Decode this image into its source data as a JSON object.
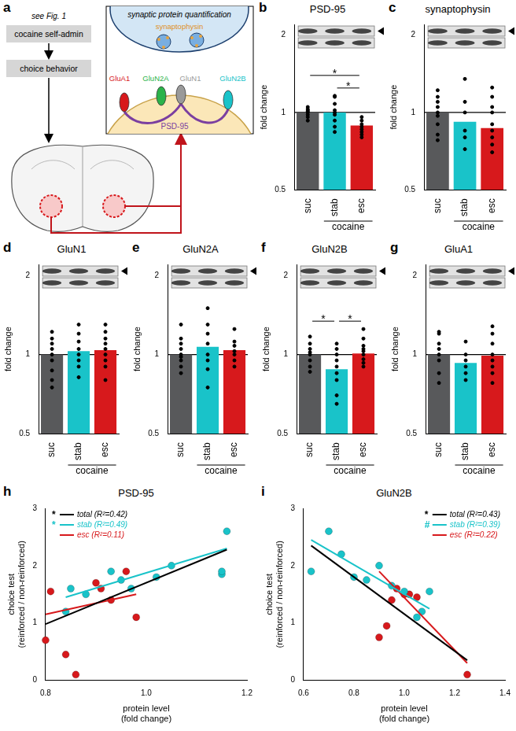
{
  "diagram": {
    "panel": "a",
    "note": "see Fig. 1",
    "steps": [
      "cocaine self-admin",
      "choice behavior"
    ],
    "inset_title": "synaptic protein quantification",
    "presynaptic": "synaptophysin",
    "scaffold": "PSD-95",
    "receptors": [
      {
        "label": "GluA1",
        "color": "#d7191c"
      },
      {
        "label": "GluN2A",
        "color": "#2bb34a"
      },
      {
        "label": "GluN1",
        "color": "#9a9a9a"
      },
      {
        "label": "GluN2B",
        "color": "#19c3c9"
      }
    ]
  },
  "chart_data": [
    {
      "type": "bar",
      "panel": "b",
      "title": "PSD-95",
      "categories": [
        "suc",
        "stab",
        "esc"
      ],
      "values": [
        1.0,
        1.0,
        0.89
      ],
      "points": [
        [
          0.93,
          0.96,
          0.98,
          1.0,
          1.01,
          1.02,
          1.03,
          1.05
        ],
        [
          0.84,
          0.88,
          0.93,
          0.98,
          1.0,
          1.02,
          1.08,
          1.15,
          1.16
        ],
        [
          0.8,
          0.82,
          0.84,
          0.86,
          0.88,
          0.9,
          0.93,
          0.96
        ]
      ],
      "colors": [
        "#58595b",
        "#19c3c9",
        "#d7191c"
      ],
      "ylabel": "fold change",
      "log": "y",
      "ylim": [
        0.5,
        2.2
      ],
      "yticks": [
        0.5,
        1,
        2
      ],
      "grid": false,
      "baseline": 1,
      "significance": [
        {
          "from": "stab",
          "to": "esc",
          "label": "*"
        },
        {
          "from": "suc",
          "to": "esc",
          "label": "*"
        }
      ],
      "group_label": {
        "text": "cocaine",
        "categories": [
          "stab",
          "esc"
        ]
      }
    },
    {
      "type": "bar",
      "panel": "c",
      "title": "synaptophysin",
      "categories": [
        "suc",
        "stab",
        "esc"
      ],
      "values": [
        1.0,
        0.92,
        0.87
      ],
      "points": [
        [
          0.78,
          0.82,
          0.9,
          0.97,
          1.0,
          1.05,
          1.1,
          1.15,
          1.22
        ],
        [
          0.72,
          0.8,
          0.85,
          1.0,
          1.1,
          1.35
        ],
        [
          0.7,
          0.75,
          0.8,
          0.85,
          0.9,
          1.0,
          1.05,
          1.15,
          1.25
        ]
      ],
      "colors": [
        "#58595b",
        "#19c3c9",
        "#d7191c"
      ],
      "ylabel": "fold change",
      "log": "y",
      "ylim": [
        0.5,
        2.2
      ],
      "yticks": [
        0.5,
        1,
        2
      ],
      "grid": false,
      "baseline": 1,
      "significance": [],
      "group_label": {
        "text": "cocaine",
        "categories": [
          "stab",
          "esc"
        ]
      }
    },
    {
      "type": "bar",
      "panel": "d",
      "title": "GluN1",
      "categories": [
        "suc",
        "stab",
        "esc"
      ],
      "values": [
        1.0,
        1.03,
        1.04
      ],
      "points": [
        [
          0.75,
          0.8,
          0.87,
          0.95,
          1.0,
          1.05,
          1.1,
          1.15,
          1.22
        ],
        [
          0.82,
          0.9,
          0.95,
          1.0,
          1.05,
          1.12,
          1.2,
          1.3
        ],
        [
          0.8,
          0.9,
          0.95,
          1.0,
          1.05,
          1.1,
          1.15,
          1.22,
          1.3
        ]
      ],
      "colors": [
        "#58595b",
        "#19c3c9",
        "#d7191c"
      ],
      "ylabel": "fold change",
      "log": "y",
      "ylim": [
        0.5,
        2.2
      ],
      "yticks": [
        0.5,
        1,
        2
      ],
      "grid": false,
      "baseline": 1,
      "significance": [],
      "group_label": {
        "text": "cocaine",
        "categories": [
          "stab",
          "esc"
        ]
      }
    },
    {
      "type": "bar",
      "panel": "e",
      "title": "GluN2A",
      "categories": [
        "suc",
        "stab",
        "esc"
      ],
      "values": [
        1.0,
        1.07,
        1.04
      ],
      "points": [
        [
          0.85,
          0.9,
          0.95,
          0.98,
          1.0,
          1.05,
          1.1,
          1.15,
          1.3
        ],
        [
          0.75,
          0.88,
          0.95,
          1.0,
          1.1,
          1.2,
          1.3,
          1.5
        ],
        [
          0.9,
          0.95,
          1.0,
          1.03,
          1.08,
          1.12,
          1.25
        ]
      ],
      "colors": [
        "#58595b",
        "#19c3c9",
        "#d7191c"
      ],
      "ylabel": "fold change",
      "log": "y",
      "ylim": [
        0.5,
        2.2
      ],
      "yticks": [
        0.5,
        1,
        2
      ],
      "grid": false,
      "baseline": 1,
      "significance": [],
      "group_label": {
        "text": "cocaine",
        "categories": [
          "stab",
          "esc"
        ]
      }
    },
    {
      "type": "bar",
      "panel": "f",
      "title": "GluN2B",
      "categories": [
        "suc",
        "stab",
        "esc"
      ],
      "values": [
        1.0,
        0.88,
        1.01
      ],
      "points": [
        [
          0.86,
          0.9,
          0.95,
          1.0,
          1.02,
          1.05,
          1.1,
          1.17
        ],
        [
          0.65,
          0.7,
          0.8,
          0.85,
          0.9,
          0.95,
          1.0,
          1.05,
          1.1
        ],
        [
          0.9,
          0.93,
          0.96,
          1.0,
          1.03,
          1.05,
          1.08,
          1.15,
          1.25
        ]
      ],
      "colors": [
        "#58595b",
        "#19c3c9",
        "#d7191c"
      ],
      "ylabel": "fold change",
      "log": "y",
      "ylim": [
        0.5,
        2.2
      ],
      "yticks": [
        0.5,
        1,
        2
      ],
      "grid": false,
      "baseline": 1,
      "significance": [
        {
          "from": "suc",
          "to": "stab",
          "label": "*"
        },
        {
          "from": "stab",
          "to": "esc",
          "label": "*"
        }
      ],
      "group_label": {
        "text": "cocaine",
        "categories": [
          "stab",
          "esc"
        ]
      }
    },
    {
      "type": "bar",
      "panel": "g",
      "title": "GluA1",
      "categories": [
        "suc",
        "stab",
        "esc"
      ],
      "values": [
        1.0,
        0.93,
        0.99
      ],
      "points": [
        [
          0.78,
          0.85,
          0.95,
          1.0,
          1.05,
          1.1,
          1.2,
          1.22
        ],
        [
          0.8,
          0.85,
          0.9,
          0.95,
          1.0,
          1.12
        ],
        [
          0.78,
          0.85,
          0.9,
          0.95,
          1.0,
          1.1,
          1.2,
          1.28
        ]
      ],
      "colors": [
        "#58595b",
        "#19c3c9",
        "#d7191c"
      ],
      "ylabel": "fold change",
      "log": "y",
      "ylim": [
        0.5,
        2.2
      ],
      "yticks": [
        0.5,
        1,
        2
      ],
      "grid": false,
      "baseline": 1,
      "significance": [],
      "group_label": {
        "text": "cocaine",
        "categories": [
          "stab",
          "esc"
        ]
      }
    },
    {
      "type": "scatter",
      "panel": "h",
      "title": "PSD-95",
      "xlabel": [
        "protein level",
        "(fold change)"
      ],
      "ylabel": [
        "choice test",
        "(reinforced / non-reinforced)"
      ],
      "xlim": [
        0.8,
        1.2
      ],
      "xticks": [
        0.8,
        {
          "value": 1,
          "label": "1.0"
        },
        1.2
      ],
      "ylim": [
        0,
        3
      ],
      "yticks": [
        0,
        1,
        2,
        3
      ],
      "grid": false,
      "legend": "upper left",
      "series": [
        {
          "name": "total",
          "color": "#000000",
          "r2_label": "(R²=0.42)",
          "significance": "*",
          "fit_x": [
            0.8,
            1.16
          ],
          "fit_values": [
            0.98,
            2.28
          ]
        },
        {
          "name": "stab",
          "color": "#19c3c9",
          "r2_label": "(R²=0.49)",
          "significance": "*",
          "fit_x": [
            0.84,
            1.16
          ],
          "fit_values": [
            1.45,
            2.3
          ],
          "x": [
            0.84,
            0.85,
            0.88,
            0.93,
            0.95,
            0.97,
            1.02,
            1.05,
            1.15,
            1.15,
            1.16
          ],
          "values": [
            1.2,
            1.6,
            1.5,
            1.9,
            1.75,
            1.6,
            1.8,
            2.0,
            1.85,
            1.9,
            2.6
          ]
        },
        {
          "name": "esc",
          "color": "#d7191c",
          "r2_label": "(R²=0.11)",
          "fit_x": [
            0.8,
            0.98
          ],
          "fit_values": [
            1.15,
            1.5
          ],
          "x": [
            0.8,
            0.81,
            0.84,
            0.86,
            0.9,
            0.91,
            0.93,
            0.96,
            0.98
          ],
          "values": [
            0.7,
            1.55,
            0.45,
            0.1,
            1.7,
            1.6,
            1.4,
            1.9,
            1.1
          ]
        }
      ]
    },
    {
      "type": "scatter",
      "panel": "i",
      "title": "GluN2B",
      "xlabel": [
        "protein level",
        "(fold change)"
      ],
      "ylabel": [
        "choice test",
        "(reinforced / non-reinforced)"
      ],
      "xlim": [
        0.6,
        1.4
      ],
      "xticks": [
        0.6,
        0.8,
        {
          "value": 1,
          "label": "1.0"
        },
        1.2,
        1.4
      ],
      "ylim": [
        0,
        3
      ],
      "yticks": [
        0,
        1,
        2,
        3
      ],
      "grid": false,
      "legend": "upper right",
      "series": [
        {
          "name": "total",
          "color": "#000000",
          "r2_label": "(R²=0.43)",
          "significance": "*",
          "fit_x": [
            0.63,
            1.25
          ],
          "fit_values": [
            2.35,
            0.35
          ]
        },
        {
          "name": "stab",
          "color": "#19c3c9",
          "r2_label": "(R²=0.39)",
          "significance": "#",
          "fit_x": [
            0.63,
            1.1
          ],
          "fit_values": [
            2.45,
            1.25
          ],
          "x": [
            0.63,
            0.7,
            0.75,
            0.8,
            0.85,
            0.9,
            0.95,
            1.0,
            1.05,
            1.07,
            1.1
          ],
          "values": [
            1.9,
            2.6,
            2.2,
            1.8,
            1.75,
            2.0,
            1.65,
            1.55,
            1.1,
            1.2,
            1.55
          ]
        },
        {
          "name": "esc",
          "color": "#d7191c",
          "r2_label": "(R²=0.22)",
          "fit_x": [
            0.9,
            1.25
          ],
          "fit_values": [
            1.9,
            0.3
          ],
          "x": [
            0.9,
            0.93,
            0.95,
            0.97,
            1.0,
            1.02,
            1.05,
            1.25
          ],
          "values": [
            0.75,
            0.95,
            1.4,
            1.6,
            1.5,
            1.5,
            1.45,
            0.1
          ]
        }
      ]
    }
  ]
}
